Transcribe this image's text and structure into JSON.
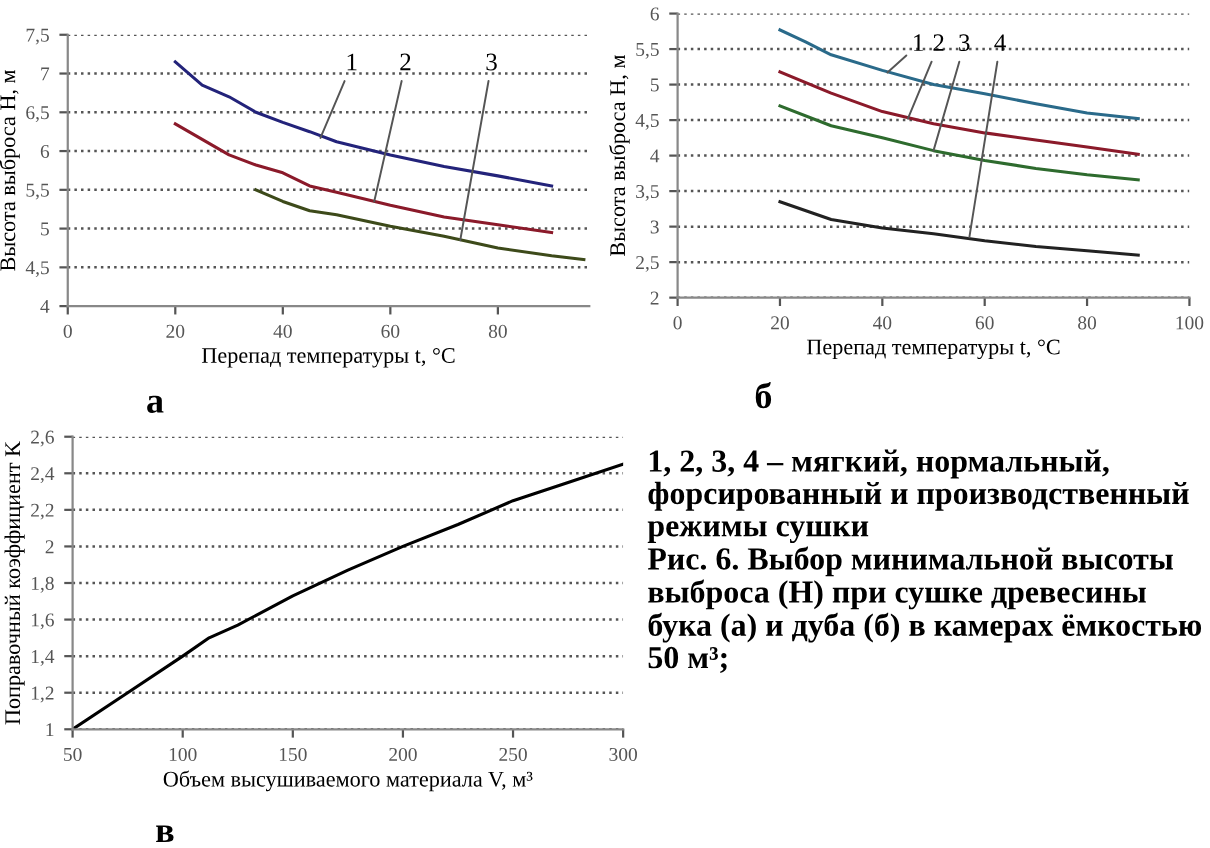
{
  "chart_data": [
    {
      "type": "line",
      "xlabel": "Перепад температуры t, °C",
      "ylabel": "Высота выброса H, м",
      "xlim": [
        0,
        97
      ],
      "xticks": [
        0,
        20,
        40,
        60,
        80
      ],
      "ylim": [
        4,
        7.5
      ],
      "yticks": [
        4,
        {
          "value": 4.5,
          "label": "4,5"
        },
        5,
        {
          "value": 5.5,
          "label": "5,5"
        },
        6,
        {
          "value": 6.5,
          "label": "6,5"
        },
        7,
        {
          "value": 7.5,
          "label": "7,5"
        }
      ],
      "grid": "y",
      "series": [
        {
          "color": "#23237a",
          "x": [
            20,
            25,
            30,
            35,
            40,
            45,
            50,
            60,
            70,
            80,
            90
          ],
          "values": [
            7.15,
            6.85,
            6.7,
            6.5,
            6.37,
            6.25,
            6.12,
            5.95,
            5.8,
            5.68,
            5.55
          ]
        },
        {
          "color": "#8b1a2a",
          "x": [
            20,
            30,
            35,
            40,
            45,
            50,
            60,
            70,
            80,
            90
          ],
          "values": [
            6.35,
            5.95,
            5.82,
            5.72,
            5.55,
            5.47,
            5.3,
            5.15,
            5.05,
            4.95
          ]
        },
        {
          "color": "#3d4a1a",
          "x": [
            35,
            40,
            45,
            50,
            60,
            70,
            80,
            90,
            96
          ],
          "values": [
            5.5,
            5.35,
            5.23,
            5.18,
            5.03,
            4.9,
            4.75,
            4.65,
            4.6
          ]
        }
      ],
      "annotations": [
        {
          "text": "1",
          "x": 47,
          "y": 6.17
        },
        {
          "text": "2",
          "x": 57,
          "y": 5.35
        },
        {
          "text": "3",
          "x": 73,
          "y": 4.85
        },
        "а"
      ]
    },
    {
      "type": "line",
      "xlabel": "Перепад температуры t, °C",
      "ylabel": "Высота выброса H, м",
      "xlim": [
        0,
        100
      ],
      "xticks": [
        0,
        20,
        40,
        60,
        80,
        100
      ],
      "ylim": [
        2,
        6
      ],
      "yticks": [
        2,
        {
          "value": 2.5,
          "label": "2,5"
        },
        3,
        {
          "value": 3.5,
          "label": "3,5"
        },
        4,
        {
          "value": 4.5,
          "label": "4,5"
        },
        5,
        {
          "value": 5.5,
          "label": "5,5"
        },
        6
      ],
      "grid": "y",
      "series": [
        {
          "color": "#2a6a8a",
          "x": [
            20,
            25,
            30,
            40,
            50,
            60,
            70,
            80,
            90
          ],
          "values": [
            5.77,
            5.6,
            5.42,
            5.2,
            5.0,
            4.87,
            4.73,
            4.6,
            4.52
          ]
        },
        {
          "color": "#8b1a2a",
          "x": [
            20,
            30,
            40,
            50,
            60,
            70,
            80,
            90
          ],
          "values": [
            5.18,
            4.88,
            4.62,
            4.45,
            4.32,
            4.22,
            4.12,
            4.02
          ]
        },
        {
          "color": "#2e6b2e",
          "x": [
            20,
            30,
            40,
            50,
            60,
            70,
            80,
            90
          ],
          "values": [
            4.7,
            4.42,
            4.25,
            4.07,
            3.93,
            3.82,
            3.73,
            3.66
          ]
        },
        {
          "color": "#222222",
          "x": [
            20,
            30,
            40,
            50,
            60,
            70,
            80,
            90
          ],
          "values": [
            3.35,
            3.1,
            2.98,
            2.9,
            2.8,
            2.72,
            2.66,
            2.6
          ]
        }
      ],
      "annotations": [
        {
          "text": "1",
          "x": 41,
          "y": 5.17
        },
        {
          "text": "2",
          "x": 45,
          "y": 4.52
        },
        {
          "text": "3",
          "x": 50,
          "y": 4.07
        },
        {
          "text": "4",
          "x": 57,
          "y": 2.85
        },
        "б"
      ]
    },
    {
      "type": "line",
      "xlabel": "Объем высушиваемого материала V, м³",
      "ylabel": "Поправочный коэффициент K",
      "xlim": [
        50,
        300
      ],
      "xticks": [
        50,
        100,
        150,
        200,
        250,
        300
      ],
      "ylim": [
        1,
        2.6
      ],
      "yticks": [
        1,
        {
          "value": 1.2,
          "label": "1,2"
        },
        {
          "value": 1.4,
          "label": "1,4"
        },
        {
          "value": 1.6,
          "label": "1,6"
        },
        {
          "value": 1.8,
          "label": "1,8"
        },
        2,
        {
          "value": 2.2,
          "label": "2,2"
        },
        {
          "value": 2.4,
          "label": "2,4"
        },
        {
          "value": 2.6,
          "label": "2,6"
        }
      ],
      "grid": "y",
      "series": [
        {
          "color": "#000000",
          "x": [
            50,
            75,
            100,
            112,
            125,
            150,
            175,
            200,
            225,
            250,
            275,
            300
          ],
          "values": [
            1.0,
            1.2,
            1.4,
            1.5,
            1.57,
            1.73,
            1.87,
            2.0,
            2.12,
            2.25,
            2.35,
            2.45
          ]
        }
      ],
      "annotations": [
        "в"
      ]
    },
    {
      "type": "other",
      "annotations": [
        "1, 2, 3, 4 – мягкий, нормальный, форсированный и производственный режимы сушки",
        "Рис. 6. Выбор минимальной высоты выброса (H) при сушке древесины бука (а) и дуба (б) в камерах ёмкостью 50 м³;"
      ]
    }
  ]
}
